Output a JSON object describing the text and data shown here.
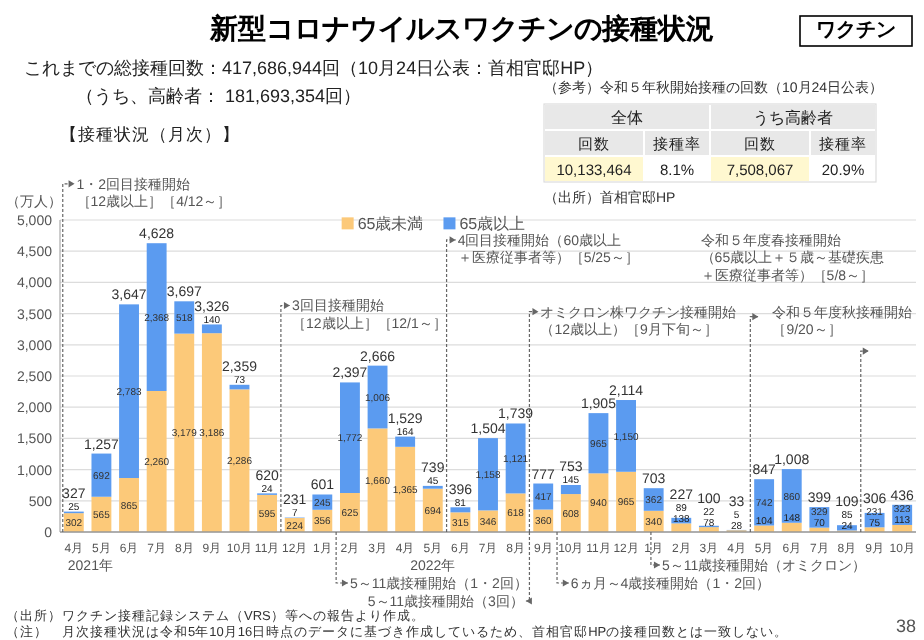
{
  "chart_data": [
    {
      "type": "bar",
      "stacked": true,
      "title": "新型コロナウイルスワクチンの接種状況",
      "ylabel": "（万人）",
      "categories": [
        "4月",
        "5月",
        "6月",
        "7月",
        "8月",
        "9月",
        "10月",
        "11月",
        "12月",
        "1月",
        "2月",
        "3月",
        "4月",
        "5月",
        "6月",
        "7月",
        "8月",
        "9月",
        "10月",
        "11月",
        "12月",
        "1月",
        "2月",
        "3月",
        "4月",
        "5月",
        "6月",
        "7月",
        "8月",
        "9月",
        "10月"
      ],
      "series": [
        {
          "name": "65歳未満",
          "color": "#fcc979",
          "values": [
            302,
            565,
            865,
            2260,
            3179,
            3186,
            2286,
            595,
            224,
            356,
            625,
            1660,
            1365,
            694,
            315,
            346,
            618,
            360,
            608,
            940,
            965,
            340,
            138,
            78,
            28,
            104,
            148,
            70,
            24,
            75,
            113
          ],
          "value_labels": [
            "302",
            "565",
            "865",
            "2,260",
            "3,179",
            "3,186",
            "2,286",
            "595",
            "224",
            "356",
            "625",
            "1,660",
            "1,365",
            "694",
            "315",
            "346",
            "618",
            "360",
            "608",
            "940",
            "965",
            "340",
            "138",
            "78",
            "28",
            "104",
            "148",
            "70",
            "24",
            "75",
            "113"
          ]
        },
        {
          "name": "65歳以上",
          "color": "#5b9bf0",
          "values": [
            25,
            692,
            2783,
            2368,
            518,
            140,
            73,
            24,
            7,
            245,
            1772,
            1006,
            164,
            45,
            81,
            1158,
            1121,
            417,
            145,
            965,
            1150,
            362,
            89,
            22,
            5,
            742,
            860,
            329,
            85,
            231,
            323
          ],
          "value_labels": [
            "25",
            "692",
            "2,783",
            "2,368",
            "518",
            "140",
            "73",
            "24",
            "7",
            "245",
            "1,772",
            "1,006",
            "164",
            "45",
            "81",
            "1,158",
            "1,121",
            "417",
            "145",
            "965",
            "1,150",
            "362",
            "89",
            "22",
            "5",
            "742",
            "860",
            "329",
            "85",
            "231",
            "323"
          ]
        }
      ],
      "totals": [
        "327",
        "1,257",
        "3,647",
        "4,628",
        "3,697",
        "3,326",
        "2,359",
        "620",
        "231",
        "601",
        "2,397",
        "2,666",
        "1,529",
        "739",
        "396",
        "1,504",
        "1,739",
        "777",
        "753",
        "1,905",
        "2,114",
        "703",
        "227",
        "100",
        "33",
        "847",
        "1,008",
        "399",
        "109",
        "306",
        "436"
      ],
      "ylim": [
        0,
        5000
      ],
      "yticks": [
        {
          "value": 0,
          "label": "0"
        },
        {
          "value": 500,
          "label": "500"
        },
        {
          "value": 1000,
          "label": "1,000"
        },
        {
          "value": 1500,
          "label": "1,500"
        },
        {
          "value": 2000,
          "label": "2,000"
        },
        {
          "value": 2500,
          "label": "2,500"
        },
        {
          "value": 3000,
          "label": "3,000"
        },
        {
          "value": 3500,
          "label": "3,500"
        },
        {
          "value": 4000,
          "label": "4,000"
        },
        {
          "value": 4500,
          "label": "4,500"
        },
        {
          "value": 5000,
          "label": "5,000"
        }
      ],
      "grid": "y",
      "legend": "top",
      "annotations": [
        "ワクチン",
        "これまでの総接種回数：417,686,944回（10月24日公表：首相官邸HP）",
        "（うち、高齢者： 181,693,354回）",
        "【接種状況（月次）】",
        {
          "text": "1・2回目接種開始［12歳以上］［4/12～］"
        },
        {
          "text": "3回目接種開始［12歳以上］［12/1～］"
        },
        {
          "text": "4回目接種開始（60歳以上＋医療従事者等）［5/25～］"
        },
        {
          "text": "オミクロン株ワクチン接種開始（12歳以上）［9月下旬～］"
        },
        {
          "text": "令和５年度春接種開始（65歳以上＋５歳～基礎疾患＋医療従事者等）［5/8～］"
        },
        {
          "text": "令和５年度秋接種開始［9/20～］"
        },
        {
          "text": "5～11歳接種開始（1・2回）"
        },
        {
          "text": "5～11歳接種開始（3回）"
        },
        {
          "text": "6ヵ月～4歳接種開始（1・2回）"
        },
        {
          "text": "5～11歳接種開始（オミクロン）"
        },
        "2021年",
        "2022年",
        "（出所）ワクチン接種記録システム（VRS）等への報告より作成。",
        "（注）　月次接種状況は令和5年10月16日時点のデータに基づき作成しているため、首相官邸HPの接種回数とは一致しない。",
        "38"
      ]
    },
    {
      "type": "other",
      "title": "（参考）令和５年秋開始接種の回数（10月24日公表）",
      "annotations": [
        "全体",
        "うち高齢者",
        "回数",
        "接種率",
        "回数",
        "接種率",
        "10,133,464",
        "8.1%",
        "7,508,067",
        "20.9%",
        "（出所）首相官邸HP"
      ]
    }
  ]
}
